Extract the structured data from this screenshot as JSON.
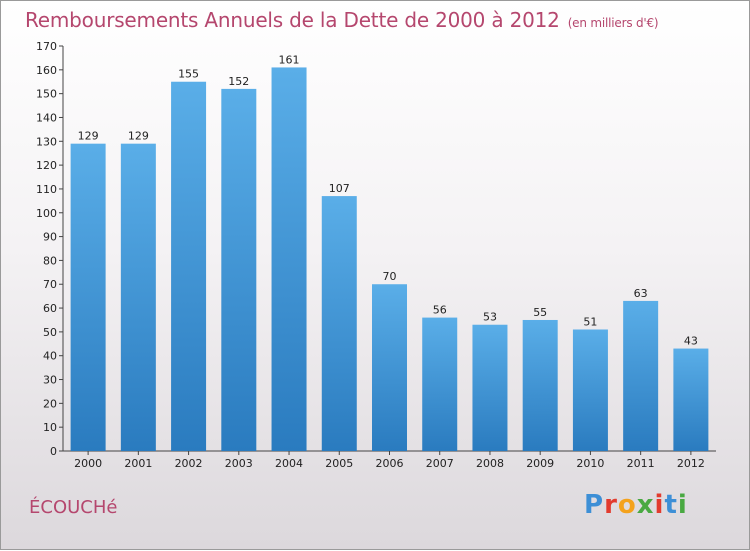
{
  "header": {
    "title": "Remboursements Annuels de la Dette de 2000 à 2012",
    "unit": "(en milliers d'€)"
  },
  "footer": {
    "commune": "ÉCOUCHé",
    "logo_text": "Proxiti"
  },
  "colors": {
    "title": "#b5476e",
    "bar_top": "#5aaee8",
    "bar_bottom": "#2a7bbf"
  },
  "chart_data": {
    "type": "bar",
    "title": "Remboursements Annuels de la Dette de 2000 à 2012",
    "xlabel": "",
    "ylabel": "",
    "categories": [
      "2000",
      "2001",
      "2002",
      "2003",
      "2004",
      "2005",
      "2006",
      "2007",
      "2008",
      "2009",
      "2010",
      "2011",
      "2012"
    ],
    "values": [
      129,
      129,
      155,
      152,
      161,
      107,
      70,
      56,
      53,
      55,
      51,
      63,
      43
    ],
    "ylim": [
      0,
      170
    ],
    "yticks": [
      0,
      10,
      20,
      30,
      40,
      50,
      60,
      70,
      80,
      90,
      100,
      110,
      120,
      130,
      140,
      150,
      160,
      170
    ],
    "grid": false,
    "data_labels": true
  }
}
